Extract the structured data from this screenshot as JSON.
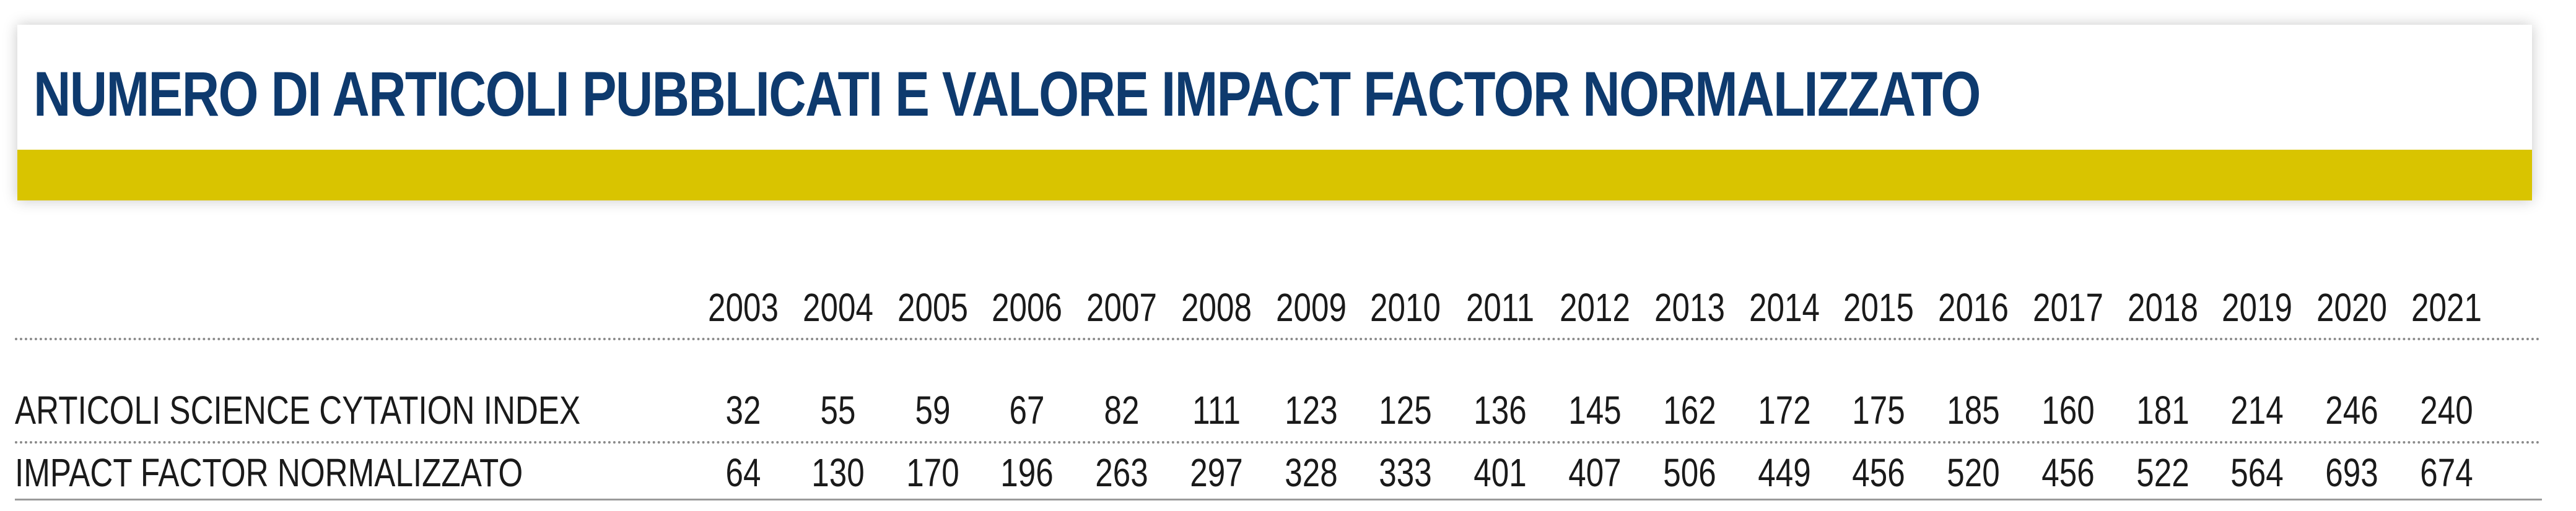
{
  "title": "NUMERO DI ARTICOLI PUBBLICATI E VALORE IMPACT FACTOR NORMALIZZATO",
  "colors": {
    "title_text": "#0e3a6e",
    "accent_bar": "#d9c400",
    "body_text": "#1a1a1a"
  },
  "chart_data": {
    "type": "table",
    "columns": [
      "2003",
      "2004",
      "2005",
      "2006",
      "2007",
      "2008",
      "2009",
      "2010",
      "2011",
      "2012",
      "2013",
      "2014",
      "2015",
      "2016",
      "2017",
      "2018",
      "2019",
      "2020",
      "2021"
    ],
    "rows": [
      {
        "label": "ARTICOLI SCIENCE CYTATION INDEX",
        "values": [
          "32",
          "55",
          "59",
          "67",
          "82",
          "111",
          "123",
          "125",
          "136",
          "145",
          "162",
          "172",
          "175",
          "185",
          "160",
          "181",
          "214",
          "246",
          "240"
        ]
      },
      {
        "label": "IMPACT FACTOR NORMALIZZATO",
        "values": [
          "64",
          "130",
          "170",
          "196",
          "263",
          "297",
          "328",
          "333",
          "401",
          "407",
          "506",
          "449",
          "456",
          "520",
          "456",
          "522",
          "564",
          "693",
          "674"
        ]
      }
    ]
  }
}
